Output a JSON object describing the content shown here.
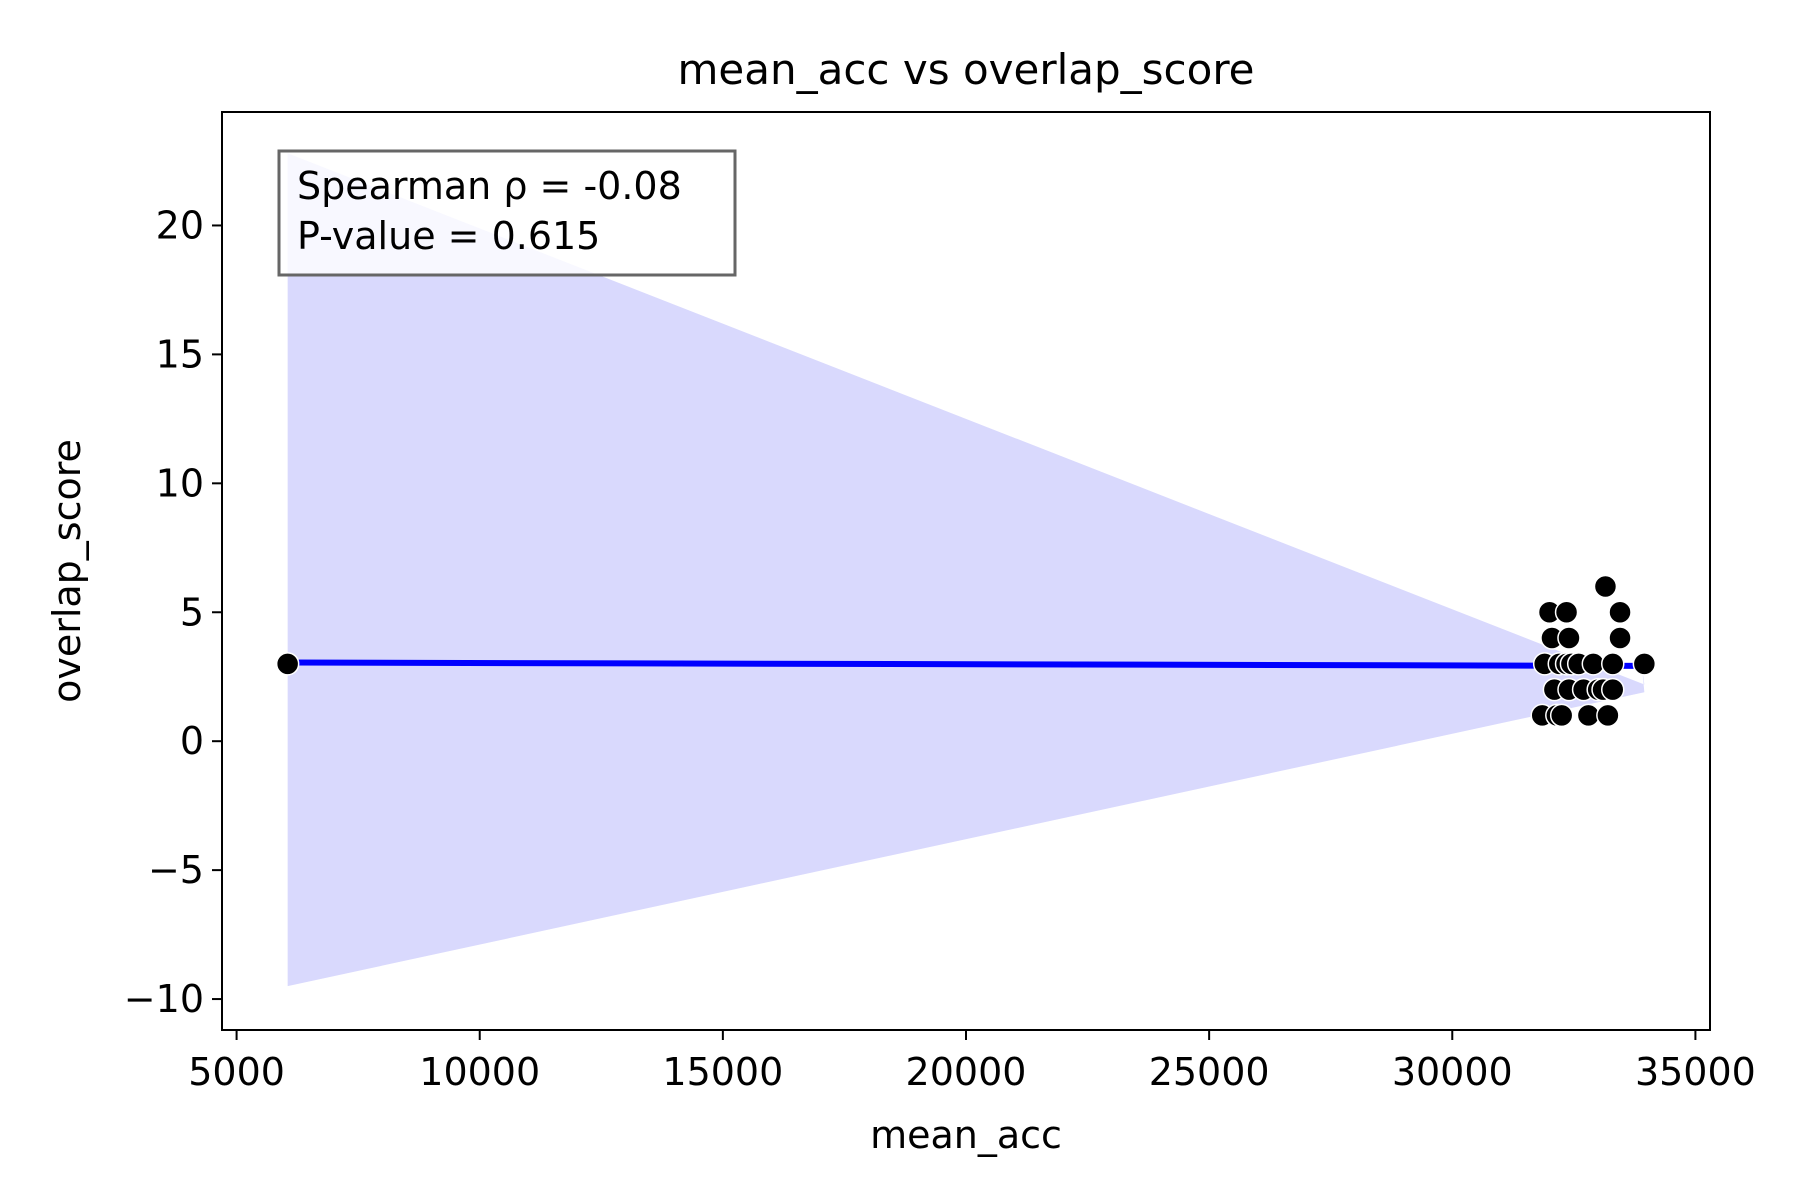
{
  "chart_data": {
    "type": "scatter",
    "title": "mean_acc vs overlap_score",
    "xlabel": "mean_acc",
    "ylabel": "overlap_score",
    "xlim": [
      4700,
      35300
    ],
    "ylim": [
      -11.2,
      24.4
    ],
    "x_ticks": [
      5000,
      10000,
      15000,
      20000,
      25000,
      30000,
      35000
    ],
    "x_tick_labels": [
      "5000",
      "10000",
      "15000",
      "20000",
      "25000",
      "30000",
      "35000"
    ],
    "y_ticks": [
      -10,
      -5,
      0,
      5,
      10,
      15,
      20
    ],
    "y_tick_labels": [
      "−10",
      "−5",
      "0",
      "5",
      "10",
      "15",
      "20"
    ],
    "grid": false,
    "annotation": {
      "lines": [
        "Spearman ρ = -0.08",
        "P-value = 0.615"
      ],
      "position": "top-left"
    },
    "regression": {
      "x": [
        6050,
        33950
      ],
      "y": [
        3.05,
        2.92
      ],
      "color": "#0000ff",
      "ci": {
        "x": [
          6050,
          33950
        ],
        "upper": [
          22.8,
          2.2
        ],
        "lower": [
          -9.5,
          1.9
        ],
        "pinch_x": 33900,
        "pinch_y": 2.9,
        "color": "#d9d9fd"
      }
    },
    "points": [
      {
        "x": 6050,
        "y": 3
      },
      {
        "x": 31850,
        "y": 1
      },
      {
        "x": 32150,
        "y": 1
      },
      {
        "x": 32250,
        "y": 1
      },
      {
        "x": 32800,
        "y": 1
      },
      {
        "x": 33200,
        "y": 1
      },
      {
        "x": 32100,
        "y": 2
      },
      {
        "x": 32400,
        "y": 2
      },
      {
        "x": 32700,
        "y": 2
      },
      {
        "x": 33000,
        "y": 2
      },
      {
        "x": 33100,
        "y": 2
      },
      {
        "x": 33300,
        "y": 2
      },
      {
        "x": 31900,
        "y": 3
      },
      {
        "x": 32200,
        "y": 3
      },
      {
        "x": 32350,
        "y": 3
      },
      {
        "x": 32450,
        "y": 3
      },
      {
        "x": 32600,
        "y": 3
      },
      {
        "x": 32900,
        "y": 3
      },
      {
        "x": 33300,
        "y": 3
      },
      {
        "x": 33950,
        "y": 3
      },
      {
        "x": 32050,
        "y": 4
      },
      {
        "x": 32400,
        "y": 4
      },
      {
        "x": 33450,
        "y": 4
      },
      {
        "x": 32000,
        "y": 5
      },
      {
        "x": 32350,
        "y": 5
      },
      {
        "x": 33450,
        "y": 5
      },
      {
        "x": 33150,
        "y": 6
      }
    ],
    "point_color": "#000000",
    "point_edge_color": "#ffffff"
  }
}
